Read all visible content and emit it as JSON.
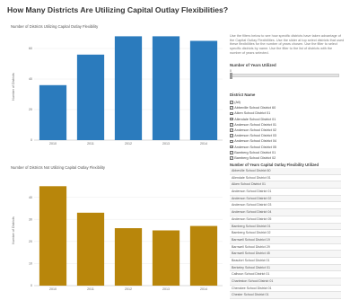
{
  "page": {
    "title": "How Many Districts Are Utilizing Capital Outlay Flexibilities?"
  },
  "sidebar": {
    "description": "Use the filters below to see how specific districts have taken advantage of the Capital Outlay Flexibilities. Use the slider at top select districts that used these flexibilities for the number of years chosen. Use the filter to select specific districts by name. Use the filter to the list of districts with the number of years selected.",
    "slider_label": "Number of Years Utilized",
    "slider_value": "0",
    "slider_fraction": 0,
    "filter_label": "District Name",
    "filter_items": [
      {
        "label": "(All)",
        "mark": "✓"
      },
      {
        "label": "Abbeville School District 60",
        "mark": "✓"
      },
      {
        "label": "Aiken School District 01",
        "mark": "✓"
      },
      {
        "label": "Allendale School District 01",
        "mark": "✓"
      },
      {
        "label": "Anderson School District 01",
        "mark": "✓"
      },
      {
        "label": "Anderson School District 02",
        "mark": "✓"
      },
      {
        "label": "Anderson School District 03",
        "mark": "✓"
      },
      {
        "label": "Anderson School District 04",
        "mark": "✓"
      },
      {
        "label": "Anderson School District 05",
        "mark": "✓"
      },
      {
        "label": "Bamberg School District 01",
        "mark": "✓"
      },
      {
        "label": "Bamberg School District 02",
        "mark": "✓"
      }
    ],
    "list_header": "Number of Years Capital Outlay Flexibility Utilized",
    "districts": [
      "Abbeville School District 60",
      "Allendale School District 01",
      "Aiken School District 01",
      "Anderson School District 01",
      "Anderson School District 02",
      "Anderson School District 03",
      "Anderson School District 04",
      "Anderson School District 05",
      "Bamberg School District 01",
      "Bamberg School District 02",
      "Barnwell School District 19",
      "Barnwell School District 29",
      "Barnwell School District 45",
      "Beaufort School District 01",
      "Berkeley School District 01",
      "Calhoun School District 01",
      "Charleston School District 01",
      "Cherokee School District 01",
      "Chester School District 01",
      "Chesterfield School District 01"
    ]
  },
  "chart_data": [
    {
      "type": "bar",
      "title": "Number of Districts Utilizing Capital Outlay Flexibility",
      "ylabel": "Number of Districts",
      "categories": [
        "2010",
        "2011",
        "2012",
        "2013",
        "2014"
      ],
      "values": [
        36,
        56,
        68,
        68,
        65
      ],
      "ylim": [
        0,
        70
      ],
      "yticks": [
        "60",
        "40",
        "20",
        "0"
      ],
      "color": "#2b7bbd"
    },
    {
      "type": "bar",
      "title": "Number of Districts Not Utilizing Capital Outlay Flexibility",
      "ylabel": "Number of Districts",
      "categories": [
        "2010",
        "2011",
        "2012",
        "2013",
        "2014"
      ],
      "values": [
        45,
        33,
        26,
        25,
        27
      ],
      "ylim": [
        0,
        50
      ],
      "yticks": [
        "40",
        "30",
        "20",
        "10",
        "0"
      ],
      "color": "#b8860b"
    }
  ]
}
